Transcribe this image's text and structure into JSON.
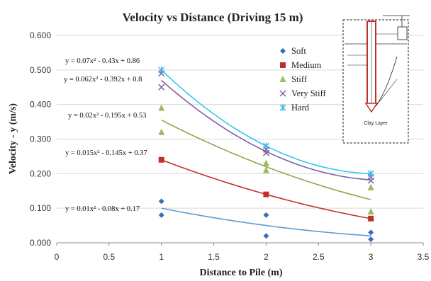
{
  "chart_data": {
    "type": "scatter",
    "title": "Velocity vs Distance (Driving 15 m)",
    "xlabel": "Distance to Pile (m)",
    "ylabel": "Velocity - y  (m/s)",
    "xlim": [
      0,
      3.5
    ],
    "ylim": [
      0,
      0.6
    ],
    "x_ticks": [
      "0",
      "0.5",
      "1",
      "1.5",
      "2",
      "2.5",
      "3",
      "3.5"
    ],
    "y_ticks": [
      "0.000",
      "0.100",
      "0.200",
      "0.300",
      "0.400",
      "0.500",
      "0.600"
    ],
    "grid": "horizontal",
    "legend_position": "top-right",
    "series": [
      {
        "name": "Soft",
        "color": "#3a6fb6",
        "marker": "diamond",
        "trend_color": "#5b9bd5",
        "points": [
          [
            1,
            0.12
          ],
          [
            1,
            0.08
          ],
          [
            2,
            0.08
          ],
          [
            2,
            0.02
          ],
          [
            3,
            0.03
          ],
          [
            3,
            0.01
          ]
        ],
        "trend": [
          0.01,
          -0.08,
          0.17
        ],
        "equation": "y = 0.01x² - 0.08x + 0.17"
      },
      {
        "name": "Medium",
        "color": "#c0302b",
        "marker": "square",
        "trend_color": "#c0302b",
        "points": [
          [
            1,
            0.24
          ],
          [
            2,
            0.14
          ],
          [
            3,
            0.07
          ]
        ],
        "trend": [
          0.015,
          -0.145,
          0.37
        ],
        "equation": "y = 0.015x² - 0.145x + 0.37"
      },
      {
        "name": "Stiff",
        "color": "#9bbb59",
        "marker": "triangle",
        "trend_color": "#8aab4a",
        "points": [
          [
            1,
            0.39
          ],
          [
            1,
            0.32
          ],
          [
            2,
            0.23
          ],
          [
            2,
            0.21
          ],
          [
            3,
            0.16
          ],
          [
            3,
            0.09
          ]
        ],
        "trend": [
          0.02,
          -0.195,
          0.53
        ],
        "equation": "y = 0.02x² - 0.195x + 0.53"
      },
      {
        "name": "Very Stiff",
        "color": "#7e5fa3",
        "marker": "x",
        "trend_color": "#7e5fa3",
        "points": [
          [
            1,
            0.49
          ],
          [
            1,
            0.45
          ],
          [
            2,
            0.27
          ],
          [
            2,
            0.26
          ],
          [
            3,
            0.19
          ],
          [
            3,
            0.18
          ]
        ],
        "trend": [
          0.062,
          -0.392,
          0.8
        ],
        "equation": "y = 0.062x² - 0.392x + 0.8"
      },
      {
        "name": "Hard",
        "color": "#33b5e5",
        "marker": "asterisk",
        "trend_color": "#33c8ee",
        "points": [
          [
            1,
            0.5
          ],
          [
            2,
            0.28
          ],
          [
            3,
            0.2
          ]
        ],
        "trend": [
          0.07,
          -0.43,
          0.86
        ],
        "equation": "y = 0.07x² - 0.43x + 0.86"
      }
    ],
    "inset": {
      "caption": "Clay Layer"
    }
  }
}
